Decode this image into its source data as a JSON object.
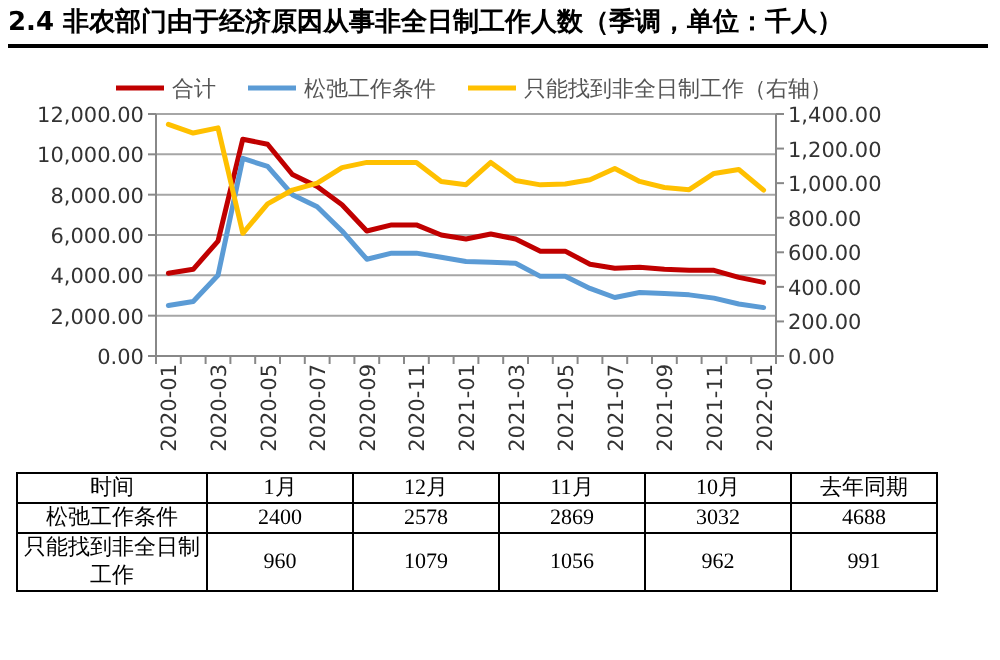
{
  "chart_data": {
    "type": "line",
    "title": "2.4 非农部门由于经济原因从事非全日制工作人数（季调，单位：千人）",
    "categories": [
      "2020-01",
      null,
      "2020-03",
      null,
      "2020-05",
      null,
      "2020-07",
      null,
      "2020-09",
      null,
      "2020-11",
      null,
      "2021-01",
      null,
      "2021-03",
      null,
      "2021-05",
      null,
      "2021-07",
      null,
      "2021-09",
      null,
      "2021-11",
      null,
      "2022-01"
    ],
    "series": [
      {
        "name": "合计",
        "color": "#c00000",
        "values": [
          4100,
          4300,
          5700,
          10750,
          10500,
          9000,
          8400,
          7500,
          6200,
          6500,
          6500,
          6000,
          5800,
          6050,
          5800,
          5200,
          5200,
          4550,
          4350,
          4400,
          4300,
          4250,
          4250,
          3900,
          3650
        ]
      },
      {
        "name": "松弛工作条件",
        "color": "#5b9bd5",
        "values": [
          2500,
          2700,
          4000,
          9800,
          9400,
          8000,
          7400,
          6200,
          4800,
          5100,
          5100,
          4900,
          4688,
          4650,
          4600,
          3950,
          3950,
          3350,
          2900,
          3150,
          3100,
          3032,
          2869,
          2578,
          2400
        ]
      },
      {
        "name": "只能找到非全日制工作（右轴）",
        "color": "#ffc000",
        "axis": "y2",
        "values": [
          1340,
          1290,
          1320,
          710,
          880,
          960,
          1000,
          1090,
          1120,
          1120,
          1120,
          1010,
          991,
          1120,
          1015,
          990,
          995,
          1020,
          1085,
          1010,
          975,
          962,
          1056,
          1079,
          960
        ]
      }
    ],
    "ylim": [
      0,
      12000
    ],
    "yticks": [
      {
        "value": 0,
        "label": "0.00"
      },
      {
        "value": 2000,
        "label": "2,000.00"
      },
      {
        "value": 4000,
        "label": "4,000.00"
      },
      {
        "value": 6000,
        "label": "6,000.00"
      },
      {
        "value": 8000,
        "label": "8,000.00"
      },
      {
        "value": 10000,
        "label": "10,000.00"
      },
      {
        "value": 12000,
        "label": "12,000.00"
      }
    ],
    "y2lim": [
      0,
      1400
    ],
    "y2ticks": [
      {
        "value": 0,
        "label": "0.00"
      },
      {
        "value": 200,
        "label": "200.00"
      },
      {
        "value": 400,
        "label": "400.00"
      },
      {
        "value": 600,
        "label": "600.00"
      },
      {
        "value": 800,
        "label": "800.00"
      },
      {
        "value": 1000,
        "label": "1,000.00"
      },
      {
        "value": 1200,
        "label": "1,200.00"
      },
      {
        "value": 1400,
        "label": "1,400.00"
      }
    ],
    "grid": "y",
    "legend": "top",
    "annotations": [
      "时间",
      "1月",
      "12月",
      "11月",
      "10月",
      "去年同期",
      "松弛工作条件",
      "2400",
      "2578",
      "2869",
      "3032",
      "4688",
      "只能找到非全日制工作",
      "960",
      "1079",
      "1056",
      "962",
      "991"
    ]
  }
}
